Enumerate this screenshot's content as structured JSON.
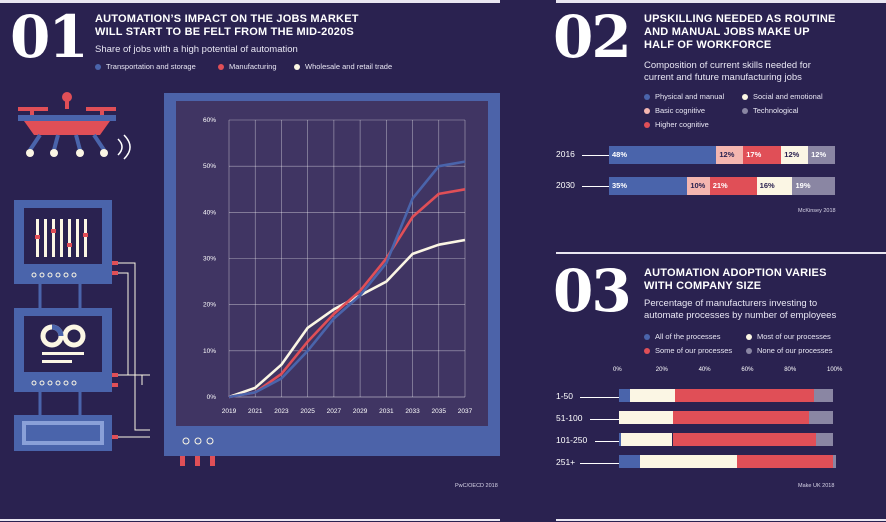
{
  "colors": {
    "background": "#2a2250",
    "blue": "#4a64ab",
    "red": "#e04f57",
    "cream": "#fbf6e4",
    "pink": "#f4b6b0",
    "grey": "#8a86a3",
    "screen": "#403563",
    "frame": "#4c63a9"
  },
  "section1": {
    "number": "01",
    "title": "AUTOMATION’S IMPACT ON THE JOBS MARKET WILL START TO BE FELT FROM THE MID-2020S",
    "subtitle": "Share of jobs with a high potential of automation",
    "legend": [
      {
        "label": "Transportation and storage",
        "color": "#4a64ab"
      },
      {
        "label": "Manufacturing",
        "color": "#e04f57"
      },
      {
        "label": "Wholesale and retail trade",
        "color": "#fbf6e4"
      }
    ],
    "source": "PwC/OECD 2018"
  },
  "section2": {
    "number": "02",
    "title": "UPSKILLING NEEDED AS ROUTINE AND MANUAL JOBS MAKE UP HALF OF WORKFORCE",
    "subtitle": "Composition of current skills needed for current and future manufacturing jobs",
    "legend": [
      {
        "label": "Physical and manual",
        "color": "#4a64ab"
      },
      {
        "label": "Social and emotional",
        "color": "#fbf6e4"
      },
      {
        "label": "Basic cognitive",
        "color": "#f4b6b0"
      },
      {
        "label": "Technological",
        "color": "#8a86a3"
      },
      {
        "label": "Higher cognitive",
        "color": "#e04f57"
      }
    ],
    "source": "McKinsey 2018"
  },
  "section3": {
    "number": "03",
    "title": "AUTOMATION ADOPTION VARIES WITH COMPANY SIZE",
    "subtitle": "Percentage of manufacturers investing to automate processes by number of employees",
    "legend": [
      {
        "label": "All of the processes",
        "color": "#4a64ab"
      },
      {
        "label": "Most of our processes",
        "color": "#fbf6e4"
      },
      {
        "label": "Some of our processes",
        "color": "#e04f57"
      },
      {
        "label": "None of our processes",
        "color": "#8a86a3"
      }
    ],
    "source": "Make UK 2018"
  },
  "chart_data": [
    {
      "type": "line",
      "title": "AUTOMATION’S IMPACT ON THE JOBS MARKET WILL START TO BE FELT FROM THE MID-2020S",
      "subtitle": "Share of jobs with a high potential of automation",
      "x": [
        2019,
        2021,
        2023,
        2025,
        2027,
        2029,
        2031,
        2033,
        2035,
        2037
      ],
      "x_tick_labels": [
        "2019",
        "2021",
        "2023",
        "2025",
        "2027",
        "2029",
        "2031",
        "2033",
        "2035",
        "2037"
      ],
      "y_tick_labels": [
        "0%",
        "10%",
        "20%",
        "30%",
        "40%",
        "50%",
        "60%"
      ],
      "ylim": [
        0,
        60
      ],
      "grid": true,
      "series": [
        {
          "name": "Transportation and storage",
          "color": "#4a64ab",
          "values": [
            0,
            1,
            4,
            10,
            17,
            22,
            29,
            43,
            50,
            51
          ]
        },
        {
          "name": "Manufacturing",
          "color": "#e04f57",
          "values": [
            0,
            1,
            5,
            12,
            18,
            23,
            30,
            39,
            44,
            45
          ]
        },
        {
          "name": "Wholesale and retail trade",
          "color": "#fbf6e4",
          "values": [
            0,
            2,
            7,
            15,
            19,
            22,
            25,
            31,
            33,
            34
          ]
        }
      ]
    },
    {
      "type": "bar",
      "stacked": true,
      "orientation": "horizontal",
      "categories": [
        "2016",
        "2030"
      ],
      "series": [
        {
          "name": "Physical and manual",
          "color": "#4a64ab",
          "values": [
            48,
            35
          ],
          "labels": [
            "48%",
            "35%"
          ]
        },
        {
          "name": "Basic cognitive",
          "color": "#f4b6b0",
          "values": [
            12,
            10
          ],
          "labels": [
            "12%",
            "10%"
          ]
        },
        {
          "name": "Higher cognitive",
          "color": "#e04f57",
          "values": [
            17,
            21
          ],
          "labels": [
            "17%",
            "21%"
          ]
        },
        {
          "name": "Social and emotional",
          "color": "#fbf6e4",
          "values": [
            12,
            16
          ],
          "labels": [
            "12%",
            "16%"
          ]
        },
        {
          "name": "Technological",
          "color": "#8a86a3",
          "values": [
            12,
            19
          ],
          "labels": [
            "12%",
            "19%"
          ]
        }
      ]
    },
    {
      "type": "bar",
      "stacked": true,
      "orientation": "horizontal",
      "categories": [
        "1-50",
        "51-100",
        "101-250",
        "251+"
      ],
      "x_tick_labels": [
        "0%",
        "20%",
        "40%",
        "60%",
        "80%",
        "100%"
      ],
      "xlim": [
        0,
        100
      ],
      "series": [
        {
          "name": "All of the processes",
          "color": "#4a64ab",
          "values": [
            5,
            0,
            1,
            10
          ]
        },
        {
          "name": "Most of our processes",
          "color": "#fbf6e4",
          "values": [
            21,
            25,
            24,
            45
          ]
        },
        {
          "name": "Some of our processes",
          "color": "#e04f57",
          "values": [
            65,
            64,
            67,
            45
          ]
        },
        {
          "name": "None of our processes",
          "color": "#8a86a3",
          "values": [
            9,
            11,
            8,
            0
          ]
        }
      ]
    }
  ]
}
